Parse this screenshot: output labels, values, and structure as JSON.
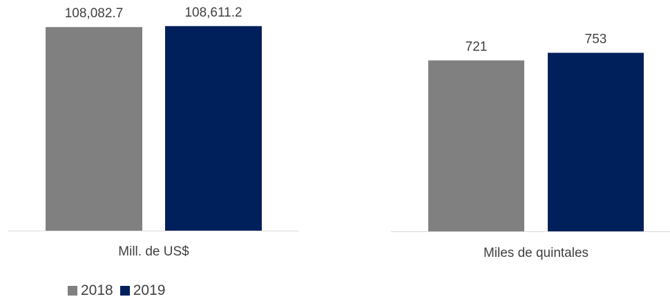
{
  "chart_data": [
    {
      "type": "bar",
      "categories": [
        "Mill. de US$"
      ],
      "series": [
        {
          "name": "2018",
          "values": [
            108082.7
          ]
        },
        {
          "name": "2019",
          "values": [
            108611.2
          ]
        }
      ],
      "data_labels": [
        "108,082.7",
        "108,611.2"
      ],
      "xlabel": "Mill. de US$",
      "ylim": [
        0,
        110000
      ]
    },
    {
      "type": "bar",
      "categories": [
        "Miles de quintales"
      ],
      "series": [
        {
          "name": "2018",
          "values": [
            721
          ]
        },
        {
          "name": "2019",
          "values": [
            753
          ]
        }
      ],
      "data_labels": [
        "721",
        "753"
      ],
      "xlabel": "Miles de quintales",
      "ylim": [
        0,
        900
      ]
    }
  ],
  "legend": {
    "placement": "bottom-left",
    "items": [
      {
        "label": "2018",
        "color": "#808080"
      },
      {
        "label": "2019",
        "color": "#00205B"
      }
    ]
  },
  "colors": {
    "axis": "#d9d9d9",
    "text": "#404040"
  }
}
